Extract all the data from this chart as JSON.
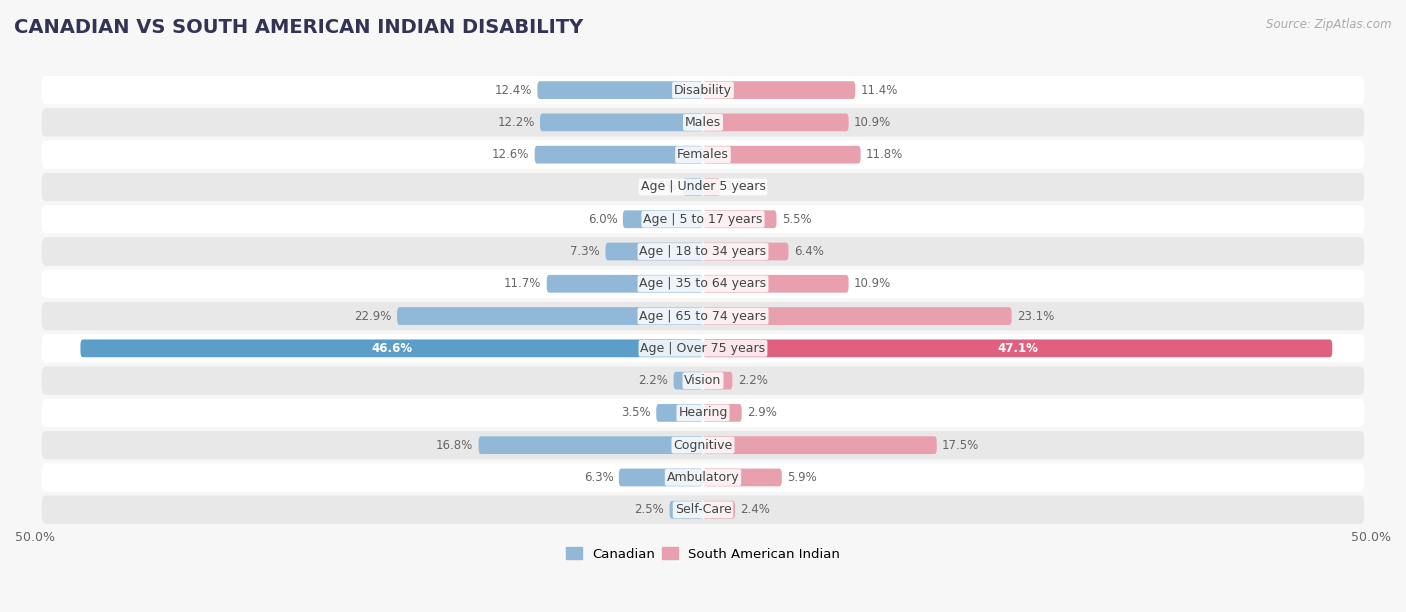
{
  "title": "CANADIAN VS SOUTH AMERICAN INDIAN DISABILITY",
  "source": "Source: ZipAtlas.com",
  "categories": [
    "Disability",
    "Males",
    "Females",
    "Age | Under 5 years",
    "Age | 5 to 17 years",
    "Age | 18 to 34 years",
    "Age | 35 to 64 years",
    "Age | 65 to 74 years",
    "Age | Over 75 years",
    "Vision",
    "Hearing",
    "Cognitive",
    "Ambulatory",
    "Self-Care"
  ],
  "left_values": [
    12.4,
    12.2,
    12.6,
    1.5,
    6.0,
    7.3,
    11.7,
    22.9,
    46.6,
    2.2,
    3.5,
    16.8,
    6.3,
    2.5
  ],
  "right_values": [
    11.4,
    10.9,
    11.8,
    1.3,
    5.5,
    6.4,
    10.9,
    23.1,
    47.1,
    2.2,
    2.9,
    17.5,
    5.9,
    2.4
  ],
  "left_color": "#92b8d8",
  "right_color": "#e8a0ae",
  "left_color_strong": "#5b9ec9",
  "right_color_strong": "#e06080",
  "max_val": 50.0,
  "background_color": "#f7f7f7",
  "row_bg_light": "#ffffff",
  "row_bg_dark": "#e8e8e8",
  "title_fontsize": 14,
  "label_fontsize": 9,
  "value_fontsize": 8.5,
  "legend_labels": [
    "Canadian",
    "South American Indian"
  ],
  "strong_row_index": 8
}
